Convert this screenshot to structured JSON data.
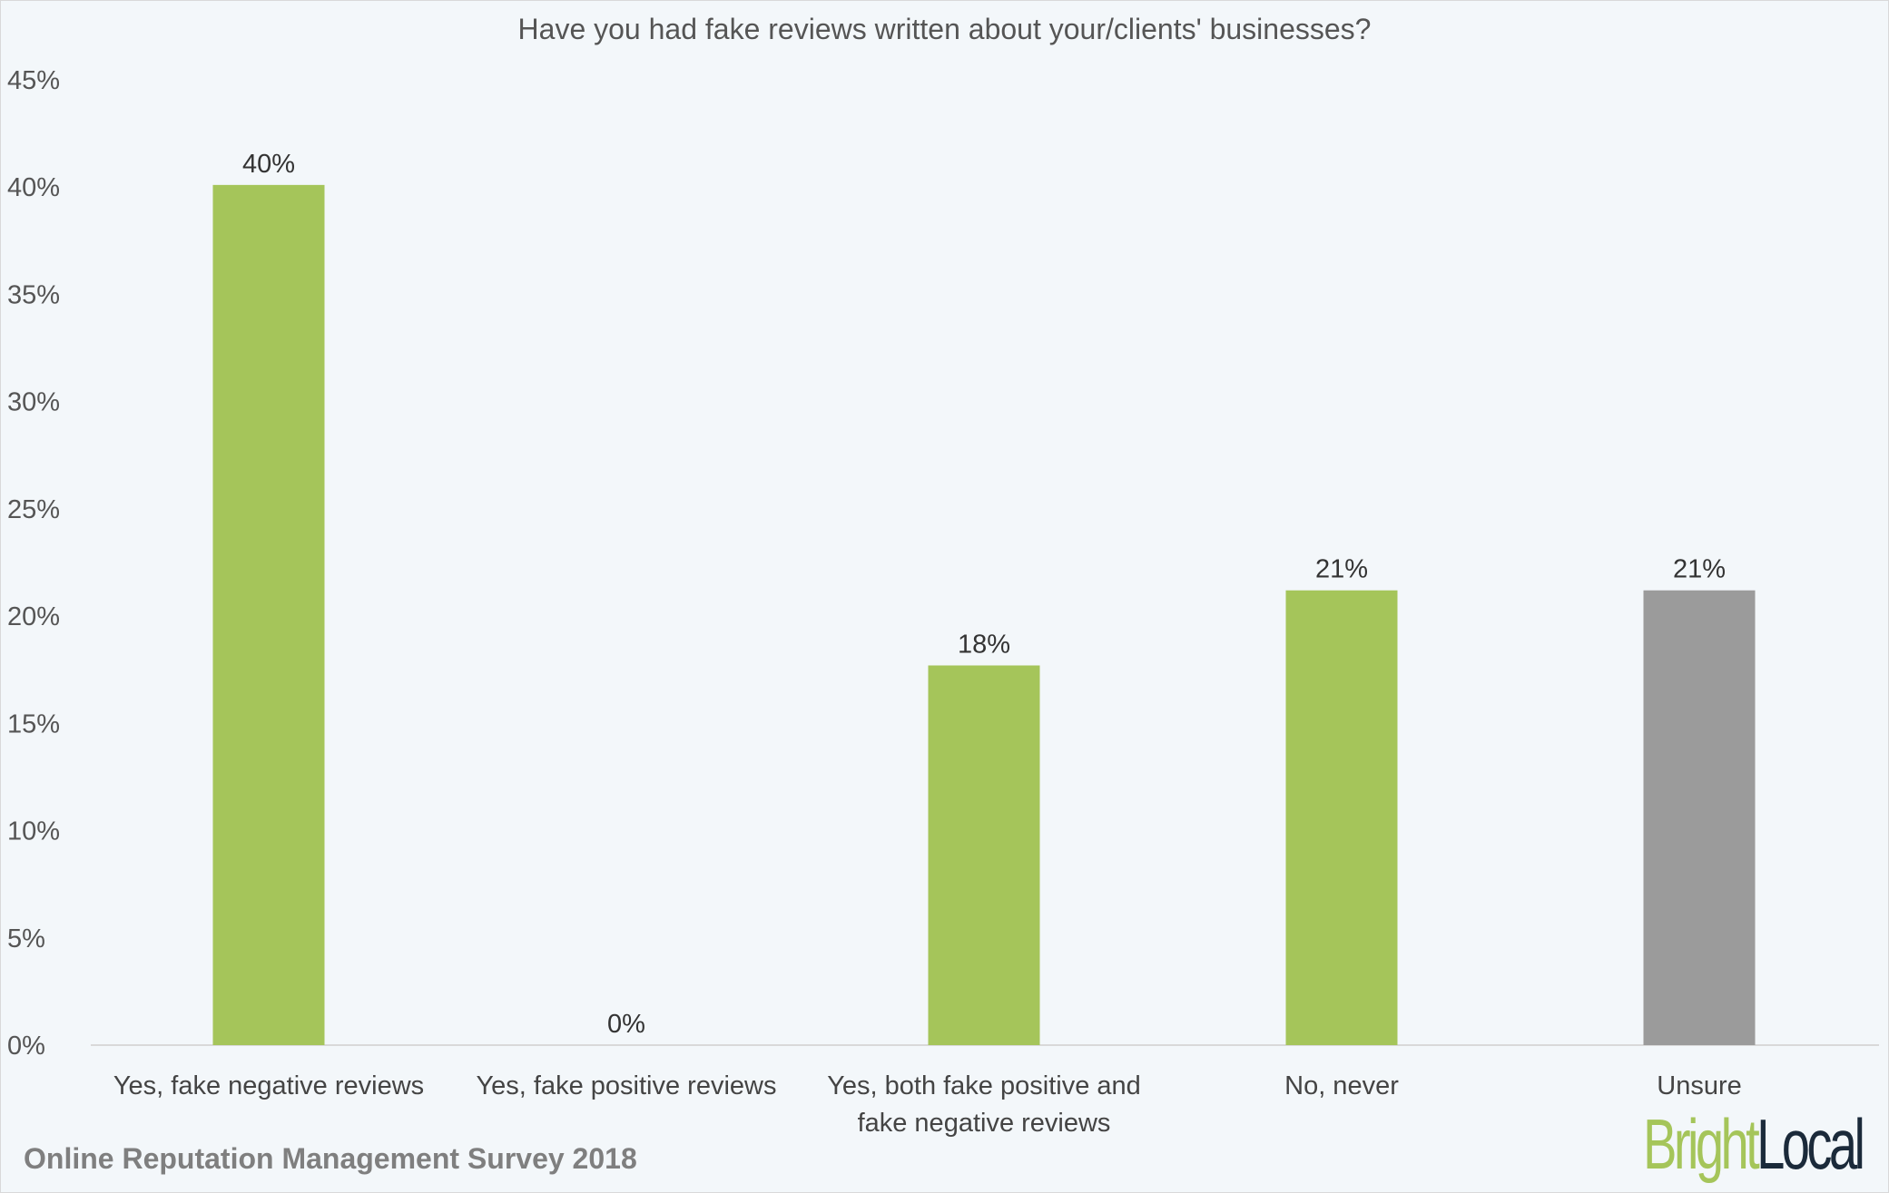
{
  "chart_data": {
    "type": "bar",
    "title": "Have you had fake reviews written about your/clients' businesses?",
    "categories": [
      [
        "Yes, fake negative reviews"
      ],
      [
        "Yes, fake positive reviews"
      ],
      [
        "Yes, both fake positive and",
        "fake negative reviews"
      ],
      [
        "No, never"
      ],
      [
        "Unsure"
      ]
    ],
    "values": [
      40.1,
      0,
      17.7,
      21.2,
      21.2
    ],
    "data_labels": [
      "40%",
      "0%",
      "18%",
      "21%",
      "21%"
    ],
    "bar_colors": [
      "#a5c55a",
      "#a5c55a",
      "#a5c55a",
      "#a5c55a",
      "#9b9b9b"
    ],
    "ylim": [
      0,
      45
    ],
    "yticks": [
      "0%",
      "5%",
      "10%",
      "15%",
      "20%",
      "25%",
      "30%",
      "35%",
      "40%",
      "45%"
    ],
    "grid": false,
    "xlabel": "",
    "ylabel": ""
  },
  "footer": {
    "source": "Online Reputation Management Survey 2018"
  },
  "logo": {
    "bright": "Bright",
    "local": "Local",
    "colors": {
      "bright": "#a5c55a",
      "local": "#1b2a3a"
    }
  }
}
